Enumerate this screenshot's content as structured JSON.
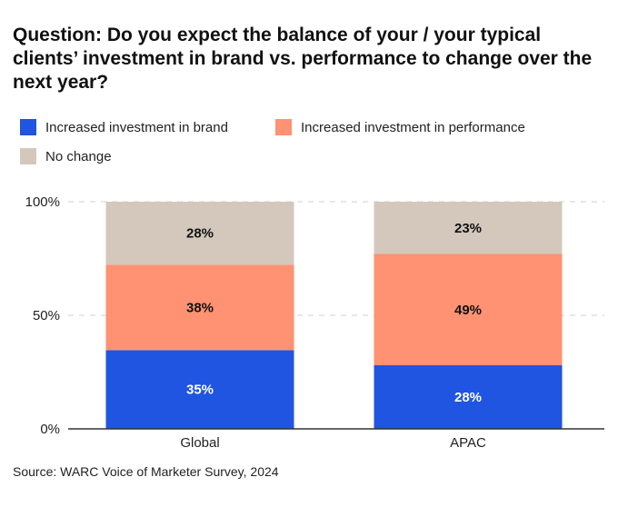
{
  "title": "Question: Do you expect the balance of your / your typical clients’ investment in brand vs. performance to change over the next year?",
  "source": "Source: WARC Voice of Marketer Survey, 2024",
  "colors": {
    "brand": "#1f55e0",
    "performance": "#fe9272",
    "no_change": "#d4c8bc",
    "axis": "#333333",
    "grid": "#cfcfcf"
  },
  "chart_data": {
    "type": "bar",
    "stacked": true,
    "categories": [
      "Global",
      "APAC"
    ],
    "series": [
      {
        "name": "Increased investment in brand",
        "values": [
          35,
          28
        ],
        "labels": [
          "35%",
          "28%"
        ],
        "color": "#1f55e0",
        "label_color": "#ffffff"
      },
      {
        "name": "Increased investment in performance",
        "values": [
          38,
          49
        ],
        "labels": [
          "38%",
          "49%"
        ],
        "color": "#fe9272",
        "label_color": "#111111"
      },
      {
        "name": "No change",
        "values": [
          28,
          23
        ],
        "labels": [
          "28%",
          "23%"
        ],
        "color": "#d4c8bc",
        "label_color": "#111111"
      }
    ],
    "ylim": [
      0,
      100
    ],
    "yticks": [
      0,
      50,
      100
    ],
    "ytick_labels": [
      "0%",
      "50%",
      "100%"
    ],
    "grid": true,
    "legend_position": "top-left"
  }
}
